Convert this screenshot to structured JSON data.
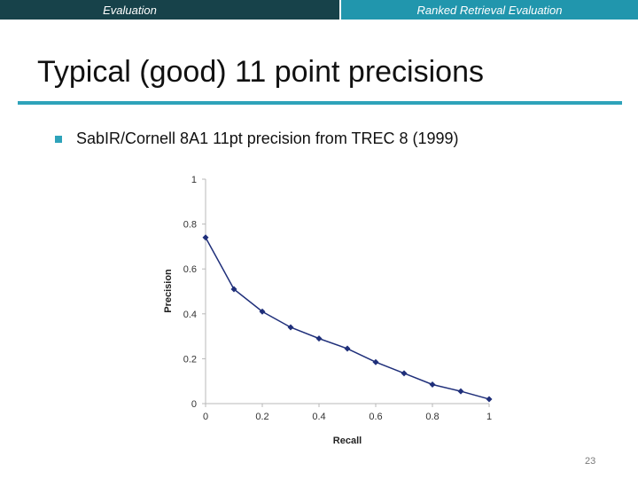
{
  "header": {
    "left_label": "Evaluation",
    "right_label": "Ranked Retrieval Evaluation"
  },
  "slide": {
    "title": "Typical (good) 11 point precisions",
    "bullet": "SabIR/Cornell 8A1 11pt precision from TREC 8 (1999)",
    "page_number": "23"
  },
  "colors": {
    "header_dark": "#17424a",
    "header_accent": "#2196ad",
    "series": "#1f2f7a"
  },
  "chart_data": {
    "type": "line",
    "xlabel": "Recall",
    "ylabel": "Precision",
    "xlim": [
      0,
      1
    ],
    "ylim": [
      0,
      1
    ],
    "xticks": [
      "0",
      "0.2",
      "0.4",
      "0.6",
      "0.8",
      "1"
    ],
    "yticks": [
      "0",
      "0.2",
      "0.4",
      "0.6",
      "0.8",
      "1"
    ],
    "grid": false,
    "series": [
      {
        "x": [
          0,
          0.1,
          0.2,
          0.3,
          0.4,
          0.5,
          0.6,
          0.7,
          0.8,
          0.9,
          1.0
        ],
        "values": [
          0.74,
          0.51,
          0.41,
          0.34,
          0.29,
          0.245,
          0.185,
          0.135,
          0.085,
          0.055,
          0.02
        ]
      }
    ]
  }
}
